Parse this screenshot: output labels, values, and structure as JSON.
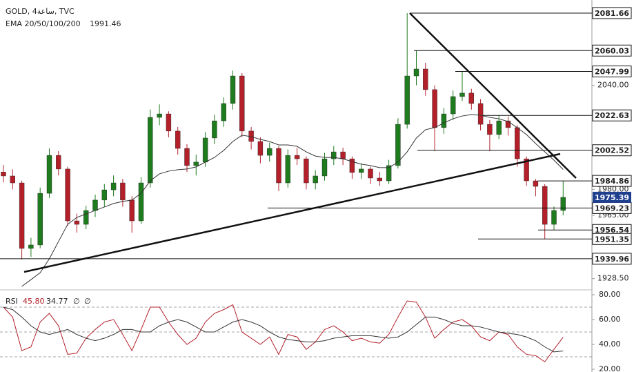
{
  "chart_data": [
    {
      "type": "candlestick",
      "title": "GOLD, 4ساعة, TVC",
      "indicator": "EMA 20/50/100/200",
      "up_color": "#1e7b1e",
      "down_color": "#b3202a",
      "ylim": [
        1922.8,
        2089.2
      ],
      "yticks": [
        {
          "value": 2040,
          "label": "2040.00"
        },
        {
          "value": 1980,
          "label": "1980.00"
        },
        {
          "value": 1965,
          "label": "1965.00"
        },
        {
          "value": 1928.5,
          "label": "1928.50"
        }
      ],
      "open": [
        1990.0,
        1987.7,
        1983.7,
        1945.9,
        1947.9,
        1977.7,
        1999.6,
        1991.7,
        1961.8,
        1959.8,
        1967.8,
        1973.8,
        1979.7,
        1983.7,
        1973.8,
        1961.8,
        1983.7,
        2021.5,
        2023.5,
        2013.6,
        2003.6,
        1993.7,
        1995.7,
        2009.6,
        2019.5,
        2029.5,
        2045.4,
        2013.6,
        2007.6,
        1999.6,
        2003.6,
        1983.7,
        1999.6,
        1997.6,
        1983.7,
        1987.7,
        1997.6,
        2001.6,
        1997.6,
        1989.7,
        1991.7,
        1986.5,
        1984.9,
        1993.7,
        2017.5,
        2045.4,
        2049.4,
        2037.5,
        2015.6,
        2023.5,
        2033.5,
        2035.5,
        2029.5,
        2017.5,
        2011.6,
        2019.5,
        2015.6,
        1997.6,
        1984.9,
        1981.7,
        1959.8,
        1967.8
      ],
      "high": [
        1994.0,
        1991.5,
        1985.0,
        1952.0,
        1981.0,
        2003.5,
        2002.0,
        1993.0,
        1966.0,
        1970.5,
        1977.0,
        1983.0,
        1988.0,
        1986.0,
        1976.0,
        1987.0,
        2026.0,
        2029.0,
        2025.0,
        2016.0,
        2006.0,
        2000.0,
        2013.0,
        2023.0,
        2033.0,
        2048.5,
        2047.0,
        2016.0,
        2010.0,
        2007.0,
        2005.0,
        2003.0,
        2004.0,
        1999.0,
        1991.0,
        2001.0,
        2005.0,
        2004.0,
        1999.0,
        1995.0,
        1993.0,
        1990.0,
        1997.0,
        2021.0,
        2081.66,
        2060.03,
        2053.0,
        2040.0,
        2027.0,
        2037.0,
        2047.99,
        2038.0,
        2032.0,
        2020.0,
        2022.63,
        2022.0,
        2017.0,
        1999.0,
        1986.0,
        1983.0,
        1970.0,
        1984.86
      ],
      "low": [
        1984.0,
        1980.0,
        1939.5,
        1941.0,
        1946.0,
        1975.0,
        1988.0,
        1959.0,
        1955.0,
        1957.0,
        1964.0,
        1970.0,
        1976.0,
        1970.0,
        1955.0,
        1960.0,
        1981.0,
        2017.0,
        2010.0,
        2000.0,
        1990.0,
        1988.0,
        1993.0,
        2006.0,
        2016.0,
        2026.0,
        2010.0,
        2003.0,
        1995.0,
        1996.0,
        1979.0,
        1981.0,
        1994.0,
        1980.0,
        1980.0,
        1985.0,
        1994.0,
        1994.0,
        1986.0,
        1986.0,
        1983.0,
        1982.0,
        1983.0,
        1992.0,
        2015.0,
        2040.0,
        2034.0,
        2002.0,
        2012.0,
        2020.0,
        2031.0,
        2026.0,
        2014.0,
        2002.0,
        2009.0,
        2011.0,
        1993.0,
        1982.0,
        1976.0,
        1951.35,
        1956.5,
        1965.0
      ],
      "close": [
        1987.7,
        1983.7,
        1945.9,
        1947.9,
        1977.7,
        1999.6,
        1991.7,
        1961.8,
        1959.8,
        1967.8,
        1973.8,
        1979.7,
        1983.7,
        1973.8,
        1961.8,
        1983.7,
        2021.5,
        2023.5,
        2013.6,
        2003.6,
        1993.7,
        1995.7,
        2009.6,
        2019.5,
        2029.5,
        2045.4,
        2013.6,
        2007.6,
        1999.6,
        2003.6,
        1983.7,
        1999.6,
        1997.6,
        1983.7,
        1987.7,
        1997.6,
        2001.6,
        1997.6,
        1989.7,
        1991.7,
        1986.5,
        1984.9,
        1993.7,
        2017.5,
        2045.4,
        2049.4,
        2037.5,
        2015.6,
        2023.5,
        2033.5,
        2035.5,
        2029.5,
        2017.5,
        2011.6,
        2019.5,
        2015.6,
        1997.6,
        1984.9,
        1981.7,
        1959.8,
        1967.8,
        1975.39
      ],
      "overlay": {
        "color": "#333333",
        "values": [
          null,
          null,
          1924.0,
          1927.9,
          1931.9,
          1939.9,
          1949.9,
          1959.8,
          1963.8,
          1965.8,
          1967.8,
          1969.8,
          1971.8,
          1973.0,
          1973.8,
          1977.7,
          1984.9,
          1988.9,
          1990.5,
          1991.3,
          1991.7,
          1992.9,
          1995.7,
          1998.4,
          2002.4,
          2007.6,
          2011.2,
          2010.4,
          2008.8,
          2007.6,
          2005.6,
          2005.6,
          2004.8,
          2001.6,
          1999.2,
          1998.4,
          1998.4,
          1997.6,
          1996.0,
          1994.5,
          1993.7,
          1992.5,
          1992.5,
          1995.7,
          2001.6,
          2009.6,
          2014.4,
          2015.6,
          2018.3,
          2020.7,
          2022.3,
          2023.1,
          2022.7,
          2021.5,
          2020.7,
          2019.1,
          2015.6,
          2011.6,
          2006.4,
          2001.6,
          1996.8,
          1991.46
        ]
      },
      "levels": [
        2081.66,
        2060.03,
        2047.99,
        2022.63,
        2002.52,
        1984.86,
        1969.23,
        1956.54,
        1951.35,
        1939.96
      ],
      "last_price": 1975.39,
      "last_color": "#1f3f8f"
    },
    {
      "type": "line",
      "title": "RSI",
      "ylim": [
        17.8,
        83.9
      ],
      "yticks": [
        {
          "value": 80,
          "label": "80.00"
        },
        {
          "value": 60,
          "label": "60.00"
        },
        {
          "value": 40,
          "label": "40.00"
        },
        {
          "value": 20,
          "label": "20.00"
        }
      ],
      "bands": [
        70,
        50,
        30
      ],
      "extras": [
        "∅",
        "∅"
      ],
      "series": [
        {
          "color": "#b3202a",
          "last_label": "45.80",
          "values": [
            70,
            62,
            35,
            38,
            58,
            65,
            55,
            32,
            33,
            45,
            52,
            58,
            60,
            48,
            35,
            52,
            70,
            70,
            58,
            48,
            40,
            45,
            58,
            65,
            68,
            72,
            50,
            45,
            40,
            46,
            32,
            48,
            46,
            36,
            42,
            52,
            55,
            50,
            43,
            45,
            42,
            41,
            48,
            62,
            75,
            74,
            62,
            45,
            52,
            58,
            60,
            55,
            46,
            43,
            50,
            48,
            38,
            32,
            31,
            26,
            36,
            45.8
          ]
        },
        {
          "color": "#333333",
          "values": [
            70,
            68,
            62,
            55,
            50,
            48,
            50,
            52,
            48,
            45,
            43,
            45,
            48,
            52,
            52,
            50,
            50,
            55,
            58,
            60,
            58,
            54,
            50,
            50,
            54,
            58,
            60,
            58,
            55,
            50,
            46,
            44,
            43,
            42,
            42,
            43,
            45,
            46,
            47,
            47,
            47,
            46,
            45,
            46,
            50,
            56,
            62,
            62,
            60,
            57,
            55,
            55,
            54,
            52,
            50,
            49,
            48,
            46,
            43,
            38,
            34,
            34.77
          ]
        }
      ]
    }
  ]
}
